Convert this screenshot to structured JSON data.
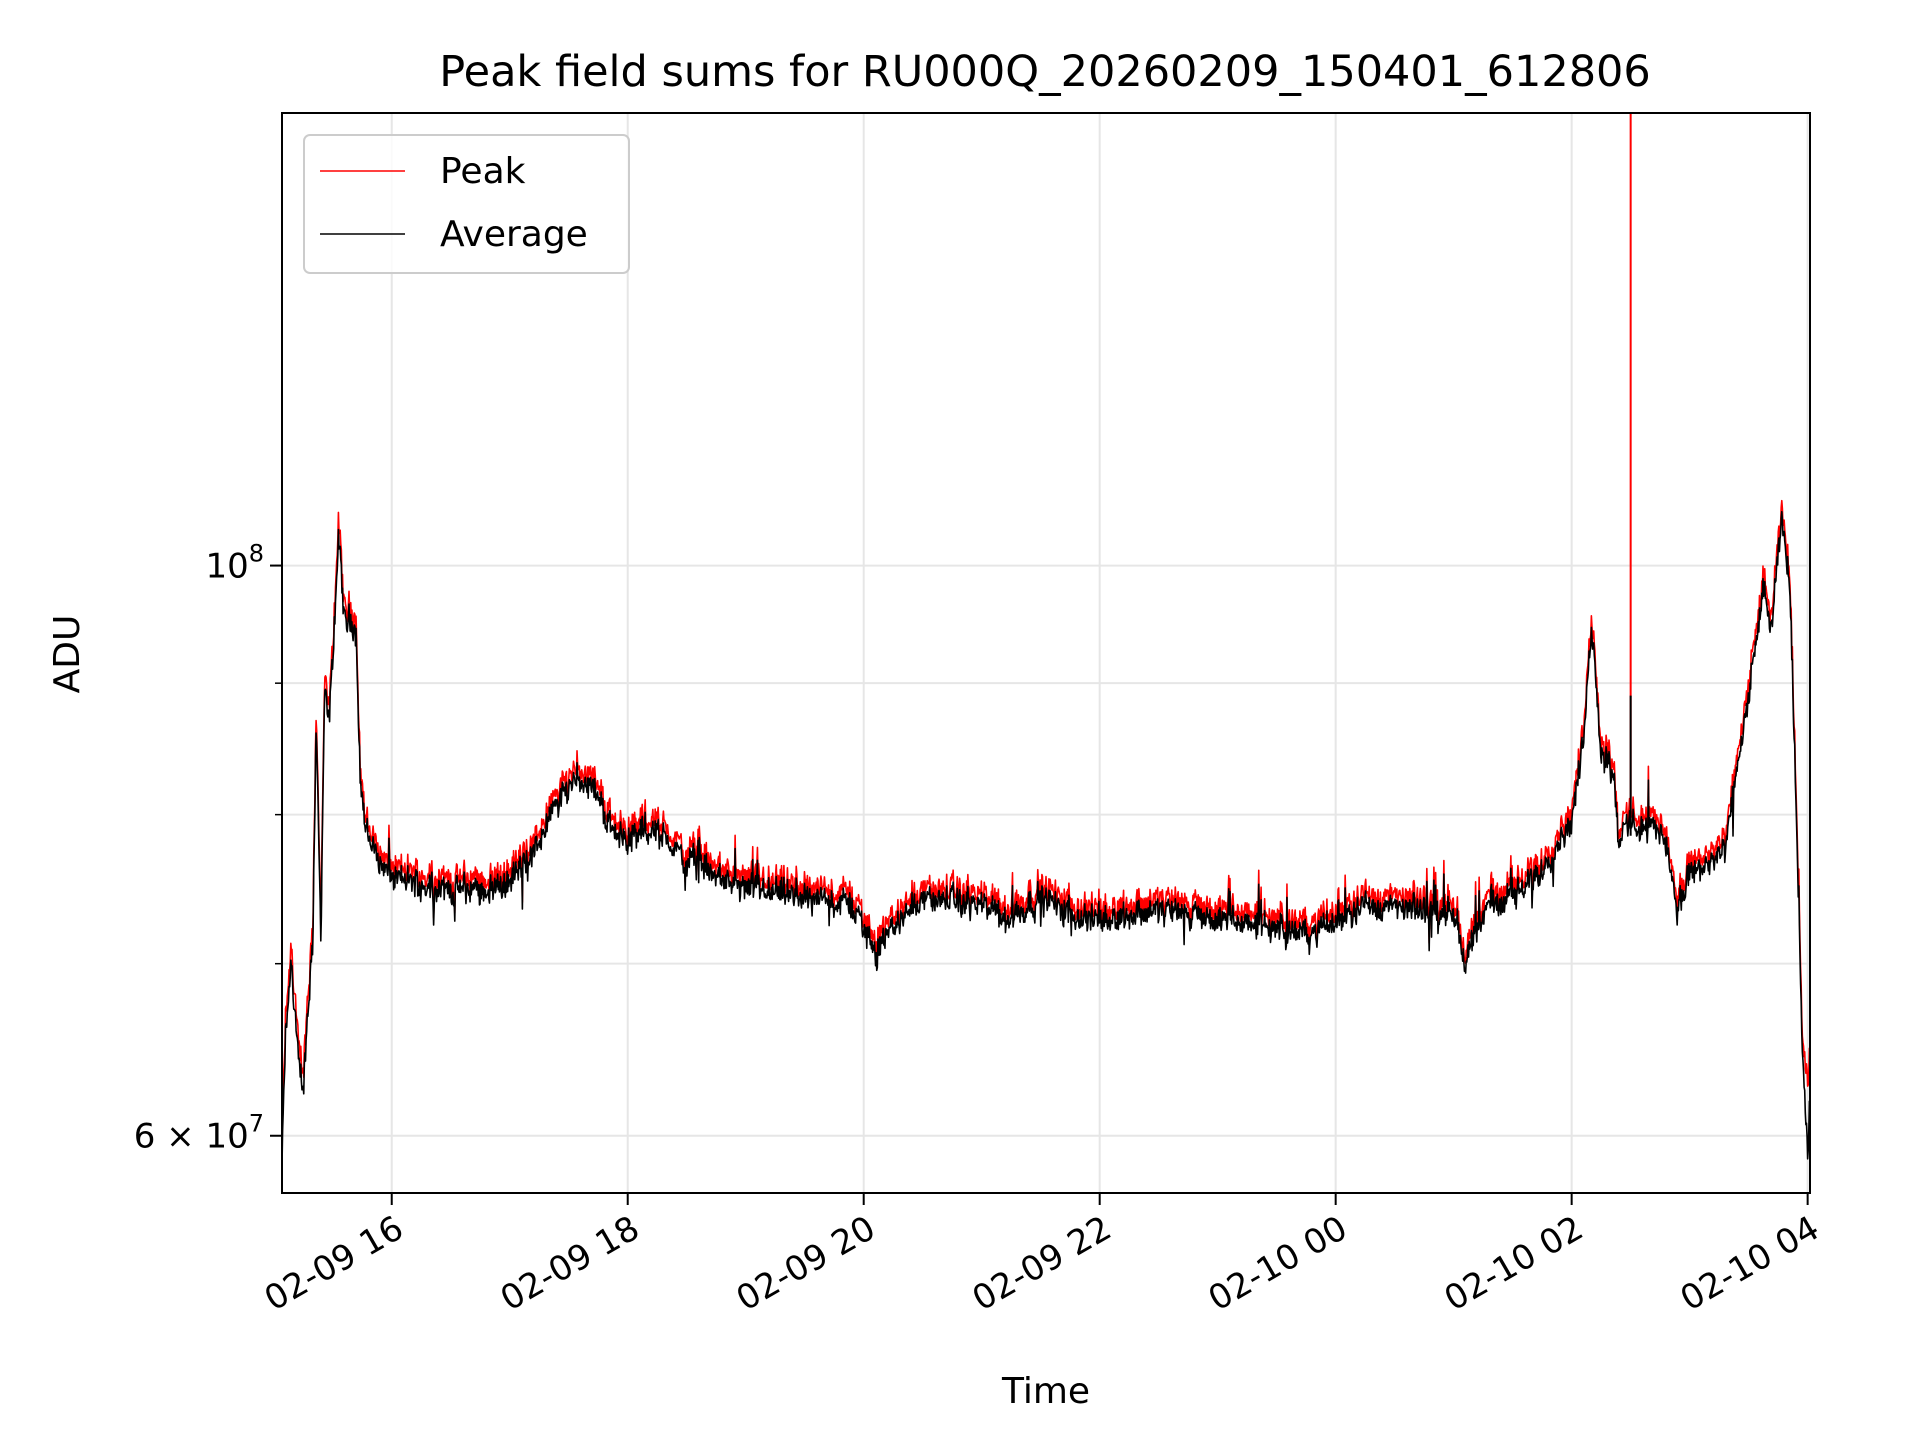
{
  "chart_data": {
    "type": "line",
    "title": "Peak field sums for RU000Q_20260209_150401_612806",
    "xlabel": "Time",
    "ylabel": "ADU",
    "yscale": "log",
    "ylim": [
      57000000,
      150000000
    ],
    "xlim_hours_from_2026_02_09_00_00": [
      15.07,
      28.02
    ],
    "grid": true,
    "legend_location": "upper left",
    "x_ticks": [
      {
        "hours": 16,
        "label": "02-09 16"
      },
      {
        "hours": 18,
        "label": "02-09 18"
      },
      {
        "hours": 20,
        "label": "02-09 20"
      },
      {
        "hours": 22,
        "label": "02-09 22"
      },
      {
        "hours": 24,
        "label": "02-10 00"
      },
      {
        "hours": 26,
        "label": "02-10 02"
      },
      {
        "hours": 28,
        "label": "02-10 04"
      }
    ],
    "y_major_ticks": [
      {
        "value": 60000000,
        "base": "6 × 10",
        "exp": "7"
      },
      {
        "value": 100000000,
        "base": "10",
        "exp": "8"
      }
    ],
    "y_minor_ticks": [
      60000000,
      70000000,
      80000000,
      90000000,
      100000000
    ],
    "series": [
      {
        "name": "Peak",
        "color": "#ff0000",
        "points_hours_adu": [
          [
            15.07,
            59500000
          ],
          [
            15.1,
            66500000
          ],
          [
            15.15,
            71000000
          ],
          [
            15.2,
            66000000
          ],
          [
            15.25,
            63500000
          ],
          [
            15.3,
            69000000
          ],
          [
            15.33,
            72000000
          ],
          [
            15.36,
            88000000
          ],
          [
            15.4,
            72000000
          ],
          [
            15.43,
            90000000
          ],
          [
            15.47,
            88000000
          ],
          [
            15.5,
            93000000
          ],
          [
            15.55,
            104000000
          ],
          [
            15.6,
            96000000
          ],
          [
            15.65,
            96500000
          ],
          [
            15.7,
            95000000
          ],
          [
            15.73,
            84000000
          ],
          [
            15.78,
            79500000
          ],
          [
            15.9,
            77500000
          ],
          [
            16.0,
            76300000
          ],
          [
            16.2,
            76000000
          ],
          [
            16.5,
            75500000
          ],
          [
            16.8,
            75500000
          ],
          [
            17.0,
            76000000
          ],
          [
            17.2,
            78000000
          ],
          [
            17.4,
            81500000
          ],
          [
            17.55,
            83500000
          ],
          [
            17.7,
            83000000
          ],
          [
            17.85,
            80000000
          ],
          [
            18.0,
            79000000
          ],
          [
            18.2,
            79800000
          ],
          [
            18.4,
            78500000
          ],
          [
            18.5,
            77000000
          ],
          [
            18.6,
            78000000
          ],
          [
            18.7,
            76500000
          ],
          [
            19.0,
            75500000
          ],
          [
            19.5,
            75000000
          ],
          [
            19.9,
            74500000
          ],
          [
            20.1,
            71500000
          ],
          [
            20.3,
            73500000
          ],
          [
            20.5,
            75000000
          ],
          [
            21.0,
            74500000
          ],
          [
            21.2,
            73500000
          ],
          [
            21.5,
            75000000
          ],
          [
            21.8,
            73800000
          ],
          [
            22.0,
            73500000
          ],
          [
            22.5,
            74200000
          ],
          [
            23.0,
            73500000
          ],
          [
            23.5,
            73000000
          ],
          [
            23.8,
            72500000
          ],
          [
            24.2,
            74500000
          ],
          [
            24.6,
            74200000
          ],
          [
            25.0,
            74000000
          ],
          [
            25.1,
            71000000
          ],
          [
            25.3,
            74500000
          ],
          [
            25.6,
            75500000
          ],
          [
            25.8,
            77500000
          ],
          [
            26.0,
            80500000
          ],
          [
            26.1,
            86000000
          ],
          [
            26.17,
            96000000
          ],
          [
            26.25,
            85500000
          ],
          [
            26.35,
            84000000
          ],
          [
            26.4,
            79000000
          ],
          [
            26.5,
            80200000
          ],
          [
            26.7,
            79700000
          ],
          [
            26.8,
            79000000
          ],
          [
            26.9,
            73800000
          ],
          [
            27.0,
            76500000
          ],
          [
            27.3,
            78000000
          ],
          [
            27.5,
            90000000
          ],
          [
            27.62,
            98500000
          ],
          [
            27.7,
            95500000
          ],
          [
            27.78,
            105500000
          ],
          [
            27.85,
            99000000
          ],
          [
            27.92,
            76000000
          ],
          [
            27.96,
            65000000
          ],
          [
            28.0,
            63000000
          ],
          [
            28.02,
            64000000
          ]
        ],
        "spike": {
          "hours": 26.5,
          "from": 80000000,
          "to": 150000000
        }
      },
      {
        "name": "Average",
        "color": "#000000",
        "points_hours_adu": [
          [
            15.07,
            58500000
          ],
          [
            15.1,
            65500000
          ],
          [
            15.15,
            70000000
          ],
          [
            15.2,
            65000000
          ],
          [
            15.25,
            62500000
          ],
          [
            15.3,
            68000000
          ],
          [
            15.33,
            71000000
          ],
          [
            15.36,
            87000000
          ],
          [
            15.4,
            71000000
          ],
          [
            15.43,
            89000000
          ],
          [
            15.47,
            87000000
          ],
          [
            15.5,
            92000000
          ],
          [
            15.55,
            102500000
          ],
          [
            15.6,
            95000000
          ],
          [
            15.65,
            95500000
          ],
          [
            15.7,
            94000000
          ],
          [
            15.73,
            83000000
          ],
          [
            15.78,
            78800000
          ],
          [
            15.9,
            76800000
          ],
          [
            16.0,
            75600000
          ],
          [
            16.2,
            75300000
          ],
          [
            16.5,
            74800000
          ],
          [
            16.8,
            74800000
          ],
          [
            17.0,
            75300000
          ],
          [
            17.2,
            77300000
          ],
          [
            17.4,
            80800000
          ],
          [
            17.55,
            82700000
          ],
          [
            17.7,
            82200000
          ],
          [
            17.85,
            79200000
          ],
          [
            18.0,
            78300000
          ],
          [
            18.2,
            79000000
          ],
          [
            18.4,
            77800000
          ],
          [
            18.5,
            76300000
          ],
          [
            18.6,
            77300000
          ],
          [
            18.7,
            75800000
          ],
          [
            19.0,
            74800000
          ],
          [
            19.5,
            74300000
          ],
          [
            19.9,
            73800000
          ],
          [
            20.1,
            70800000
          ],
          [
            20.3,
            72800000
          ],
          [
            20.5,
            74300000
          ],
          [
            21.0,
            73800000
          ],
          [
            21.2,
            72800000
          ],
          [
            21.5,
            74300000
          ],
          [
            21.8,
            73100000
          ],
          [
            22.0,
            72800000
          ],
          [
            22.5,
            73500000
          ],
          [
            23.0,
            72800000
          ],
          [
            23.5,
            72300000
          ],
          [
            23.8,
            71800000
          ],
          [
            24.2,
            73800000
          ],
          [
            24.6,
            73500000
          ],
          [
            25.0,
            73300000
          ],
          [
            25.1,
            70300000
          ],
          [
            25.3,
            73800000
          ],
          [
            25.6,
            74800000
          ],
          [
            25.8,
            76800000
          ],
          [
            26.0,
            79700000
          ],
          [
            26.1,
            85200000
          ],
          [
            26.17,
            95000000
          ],
          [
            26.25,
            84700000
          ],
          [
            26.35,
            83200000
          ],
          [
            26.4,
            78300000
          ],
          [
            26.5,
            79400000
          ],
          [
            26.7,
            79000000
          ],
          [
            26.8,
            78300000
          ],
          [
            26.9,
            73100000
          ],
          [
            27.0,
            75800000
          ],
          [
            27.3,
            77300000
          ],
          [
            27.5,
            89000000
          ],
          [
            27.62,
            97500000
          ],
          [
            27.7,
            94500000
          ],
          [
            27.78,
            104500000
          ],
          [
            27.85,
            98000000
          ],
          [
            27.92,
            75000000
          ],
          [
            27.96,
            64000000
          ],
          [
            28.0,
            59000000
          ],
          [
            28.02,
            61500000
          ]
        ],
        "spike": {
          "hours": 26.5,
          "from": 78500000,
          "to": 89000000
        }
      }
    ]
  }
}
